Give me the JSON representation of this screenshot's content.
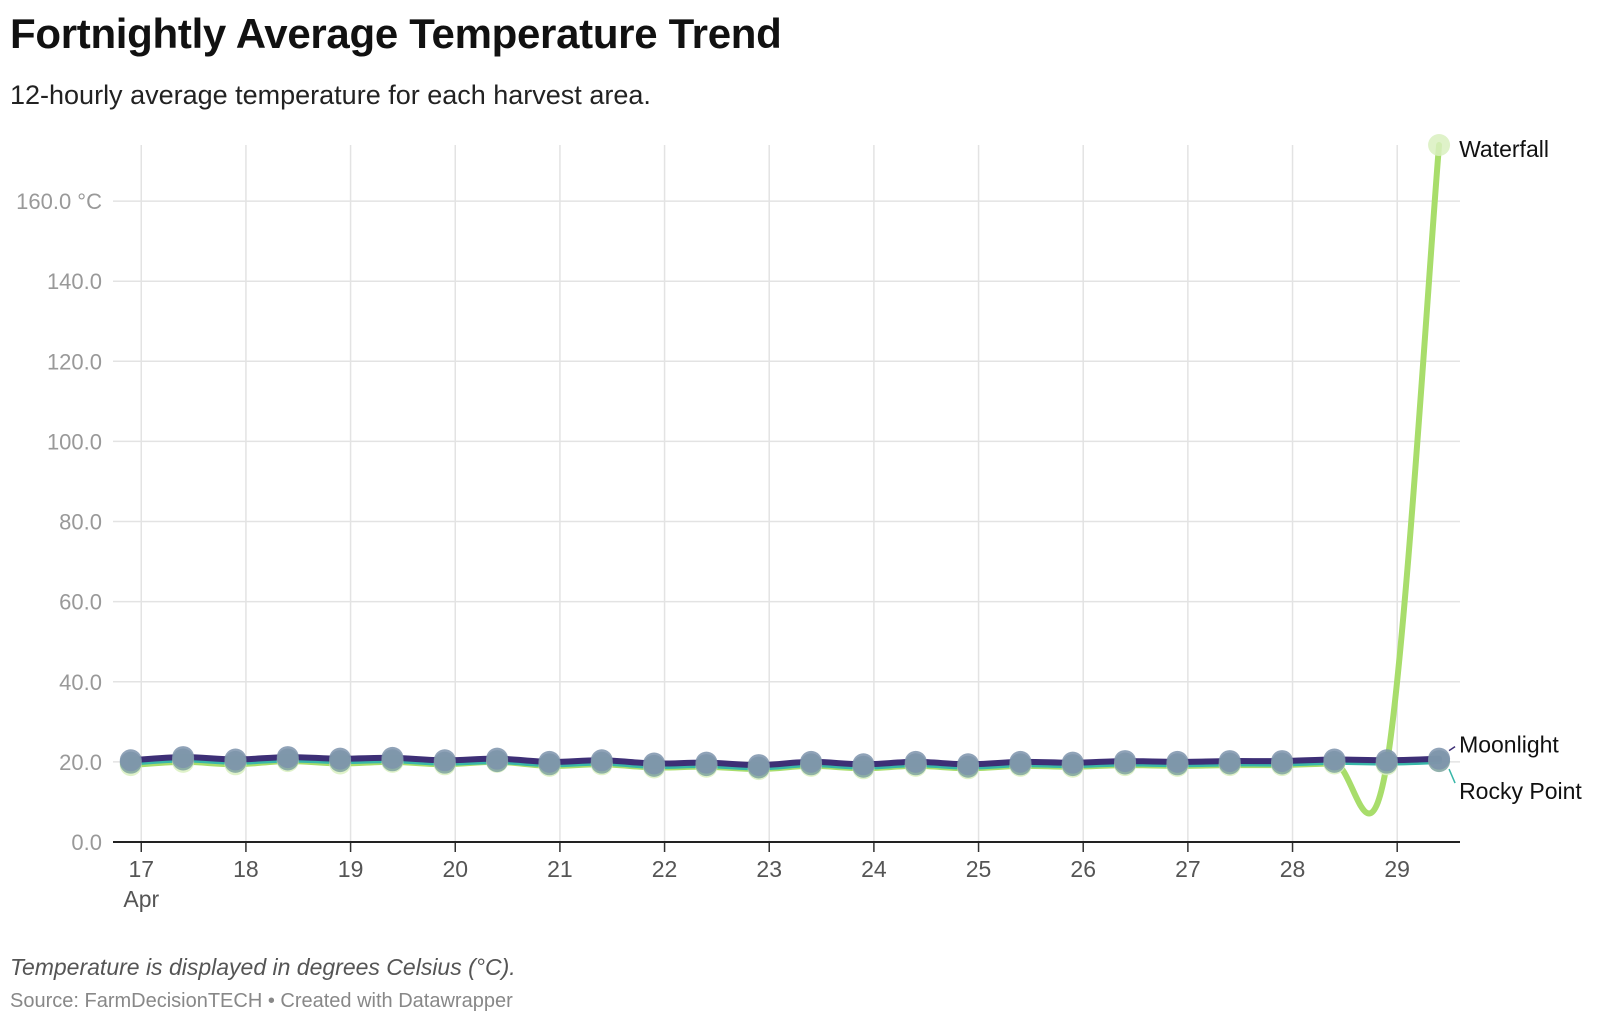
{
  "title": "Fortnightly Average Temperature Trend",
  "subtitle": "12-hourly average temperature for each harvest area.",
  "footer": {
    "note": "Temperature is displayed in degrees Celsius (°C).",
    "source": "Source: FarmDecisionTECH • Created with Datawrapper"
  },
  "chart_data": {
    "type": "line",
    "xlabel": "",
    "ylabel": "",
    "ylim": [
      0,
      174
    ],
    "y_ticks": [
      {
        "value": 0,
        "label": "0.0"
      },
      {
        "value": 20,
        "label": "20.0"
      },
      {
        "value": 40,
        "label": "40.0"
      },
      {
        "value": 60,
        "label": "60.0"
      },
      {
        "value": 80,
        "label": "80.0"
      },
      {
        "value": 100,
        "label": "100.0"
      },
      {
        "value": 120,
        "label": "120.0"
      },
      {
        "value": 140,
        "label": "140.0"
      },
      {
        "value": 160,
        "label": "160.0 °C"
      }
    ],
    "x_ticks": [
      {
        "day": 17,
        "label": "17",
        "sublabel": "Apr"
      },
      {
        "day": 18,
        "label": "18"
      },
      {
        "day": 19,
        "label": "19"
      },
      {
        "day": 20,
        "label": "20"
      },
      {
        "day": 21,
        "label": "21"
      },
      {
        "day": 22,
        "label": "22"
      },
      {
        "day": 23,
        "label": "23"
      },
      {
        "day": 24,
        "label": "24"
      },
      {
        "day": 25,
        "label": "25"
      },
      {
        "day": 26,
        "label": "26"
      },
      {
        "day": 27,
        "label": "27"
      },
      {
        "day": 28,
        "label": "28"
      },
      {
        "day": 29,
        "label": "29"
      }
    ],
    "x": [
      16.9,
      17.4,
      17.9,
      18.4,
      18.9,
      19.4,
      19.9,
      20.4,
      20.9,
      21.4,
      21.9,
      22.4,
      22.9,
      23.4,
      23.9,
      24.4,
      24.9,
      25.4,
      25.9,
      26.4,
      26.9,
      27.4,
      27.9,
      28.4,
      28.9,
      29.4
    ],
    "x_min": 16.73,
    "x_max": 29.6,
    "grid": true,
    "series": [
      {
        "name": "Waterfall",
        "color": "#a8dd6b",
        "values": [
          19.2,
          20.0,
          19.4,
          20.2,
          19.6,
          20.0,
          19.4,
          20.0,
          19.0,
          19.4,
          18.6,
          18.8,
          18.2,
          19.0,
          18.4,
          19.0,
          18.4,
          19.0,
          18.8,
          19.2,
          19.0,
          19.2,
          19.2,
          19.6,
          19.4,
          174.0
        ],
        "label_offset_y": 4,
        "dot_fill": "#d9f0c0"
      },
      {
        "name": "Rocky Point",
        "color": "#38b6a8",
        "values": [
          19.8,
          20.6,
          20.0,
          20.6,
          20.2,
          20.4,
          19.8,
          20.2,
          19.4,
          19.8,
          19.0,
          19.2,
          18.6,
          19.4,
          18.8,
          19.4,
          18.8,
          19.4,
          19.2,
          19.6,
          19.4,
          19.6,
          19.6,
          20.0,
          19.8,
          20.2
        ],
        "label_offset_y": 30,
        "dot_fill": "#7fa39f"
      },
      {
        "name": "Moonlight",
        "color": "#3d2f76",
        "values": [
          20.4,
          21.2,
          20.6,
          21.2,
          20.8,
          21.0,
          20.4,
          20.8,
          20.0,
          20.4,
          19.6,
          19.8,
          19.2,
          20.0,
          19.4,
          20.0,
          19.4,
          20.0,
          19.8,
          20.2,
          20.0,
          20.2,
          20.2,
          20.6,
          20.4,
          20.8
        ],
        "label_offset_y": -14,
        "dot_fill": "#7d93ab"
      }
    ]
  }
}
